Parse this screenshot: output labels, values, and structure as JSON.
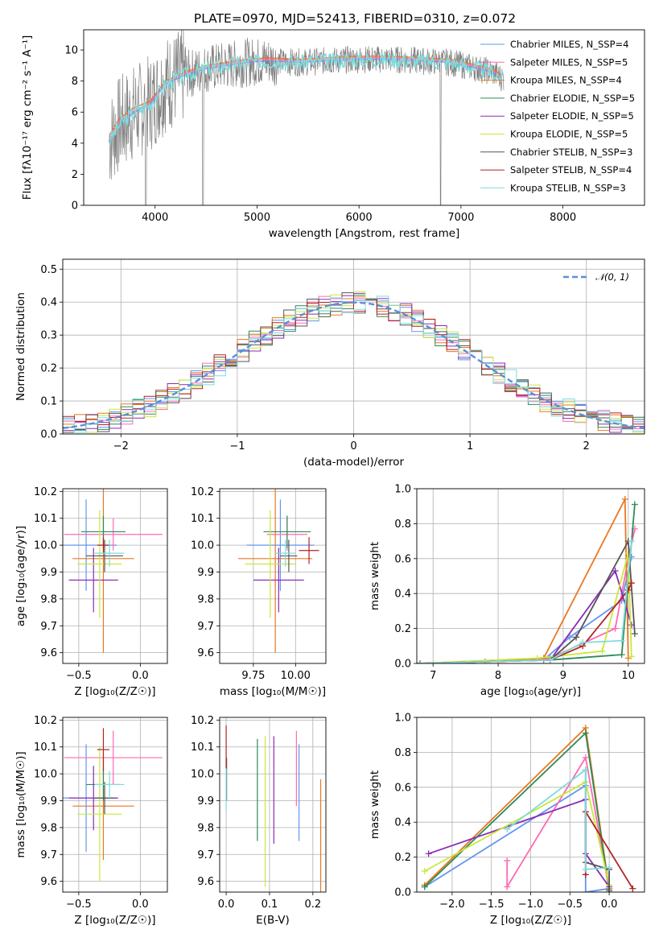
{
  "title": "PLATE=0970, MJD=52413, FIBERID=0310, z=0.072",
  "colors": {
    "chabrier_miles": "#6495ed",
    "salpeter_miles": "#ff69b4",
    "kroupa_miles": "#e87722",
    "chabrier_elodie": "#2e8b57",
    "salpeter_elodie": "#8b2bb5",
    "kroupa_elodie": "#c9e83a",
    "chabrier_stelib": "#555555",
    "salpeter_stelib": "#b22222",
    "kroupa_stelib": "#7fdcdc",
    "spectrum_data": "#808080",
    "gauss": "#5b8fd6"
  },
  "chart_data": [
    {
      "id": "spectrum",
      "type": "line",
      "title": "PLATE=0970, MJD=52413, FIBERID=0310, z=0.072",
      "xlabel": "wavelength [Angstrom, rest frame]",
      "ylabel": "Flux [fλ10⁻¹⁷ erg cm⁻² s⁻¹ A⁻¹]",
      "xlim": [
        3300,
        8800
      ],
      "ylim": [
        0,
        11.3
      ],
      "xticks": [
        "4000",
        "5000",
        "6000",
        "7000",
        "8000"
      ],
      "yticks": [
        "0",
        "2",
        "4",
        "6",
        "8",
        "10"
      ],
      "legend_position": "right",
      "series": [
        {
          "name": "Chabrier MILES, N_SSP=4",
          "key": "chabrier_miles",
          "x": [
            3550,
            3650,
            3800,
            3950,
            4100,
            4300,
            4500,
            4700,
            4900,
            5100,
            5400,
            5700,
            6000,
            6300,
            6600,
            6900,
            7100,
            7300,
            7400
          ],
          "y": [
            4.1,
            5.2,
            6.0,
            6.5,
            7.8,
            8.4,
            8.8,
            9.0,
            9.2,
            9.3,
            9.2,
            9.3,
            9.4,
            9.4,
            9.3,
            9.2,
            8.9,
            8.6,
            8.2
          ]
        },
        {
          "name": "Salpeter MILES, N_SSP=5",
          "key": "salpeter_miles",
          "x": [
            3550,
            3650,
            3800,
            3950,
            4100,
            4300,
            4500,
            4700,
            4900,
            5100,
            5400,
            5700,
            6000,
            6300,
            6600,
            6900,
            7100,
            7300,
            7400
          ],
          "y": [
            4.3,
            5.4,
            6.1,
            6.6,
            7.9,
            8.5,
            8.9,
            9.1,
            9.3,
            9.4,
            9.3,
            9.4,
            9.5,
            9.5,
            9.4,
            9.3,
            9.0,
            8.7,
            8.3
          ]
        },
        {
          "name": "Kroupa MILES, N_SSP=4",
          "key": "kroupa_miles",
          "x": [
            3550,
            3650,
            3800,
            3950,
            4100,
            4300,
            4500,
            4700,
            4900,
            5100,
            5400,
            5700,
            6000,
            6300,
            6600,
            6900,
            7100,
            7300,
            7400
          ],
          "y": [
            4.5,
            5.6,
            6.3,
            6.7,
            8.0,
            8.6,
            9.0,
            9.2,
            9.4,
            9.5,
            9.4,
            9.5,
            9.6,
            9.6,
            9.5,
            9.4,
            9.1,
            8.8,
            8.4
          ]
        }
      ]
    },
    {
      "id": "residuals",
      "type": "line",
      "xlabel": "(data-model)/error",
      "ylabel": "Normed distribution",
      "xlim": [
        -2.5,
        2.5
      ],
      "ylim": [
        0,
        0.53
      ],
      "xticks": [
        "−2",
        "−1",
        "0",
        "1",
        "2"
      ],
      "yticks": [
        "0.0",
        "0.1",
        "0.2",
        "0.3",
        "0.4",
        "0.5"
      ],
      "legend_position": "top-right",
      "series": [
        {
          "name": "𝒩(0, 1)",
          "key": "gauss",
          "x": [
            -2.5,
            -2.0,
            -1.5,
            -1.0,
            -0.5,
            0.0,
            0.5,
            1.0,
            1.5,
            2.0,
            2.5
          ],
          "y": [
            0.018,
            0.054,
            0.13,
            0.242,
            0.352,
            0.399,
            0.352,
            0.242,
            0.13,
            0.054,
            0.018
          ]
        }
      ]
    },
    {
      "id": "age_vs_Z",
      "type": "scatter",
      "xlabel": "Z [log₁₀(Z/Z☉)]",
      "ylabel": "age  [log₁₀(age/yr)]",
      "xlim": [
        -0.63,
        0.22
      ],
      "ylim": [
        9.56,
        10.21
      ],
      "xticks": [
        "−0.5",
        "0.0"
      ],
      "yticks": [
        "9.6",
        "9.7",
        "9.8",
        "9.9",
        "10.0",
        "10.1",
        "10.2"
      ],
      "points": [
        {
          "key": "chabrier_miles",
          "x": -0.44,
          "y": 10.0,
          "xerr": 0.25,
          "yerr": 0.17
        },
        {
          "key": "salpeter_miles",
          "x": -0.22,
          "y": 10.04,
          "xerr": 0.4,
          "yerr": 0.06
        },
        {
          "key": "kroupa_miles",
          "x": -0.3,
          "y": 9.95,
          "xerr": 0.25,
          "yerr": 0.35
        },
        {
          "key": "chabrier_elodie",
          "x": -0.3,
          "y": 10.05,
          "xerr": 0.18,
          "yerr": 0.06
        },
        {
          "key": "salpeter_elodie",
          "x": -0.38,
          "y": 9.87,
          "xerr": 0.2,
          "yerr": 0.12
        },
        {
          "key": "kroupa_elodie",
          "x": -0.33,
          "y": 9.93,
          "xerr": 0.18,
          "yerr": 0.2
        },
        {
          "key": "chabrier_stelib",
          "x": -0.29,
          "y": 9.96,
          "xerr": 0.15,
          "yerr": 0.06
        },
        {
          "key": "salpeter_stelib",
          "x": -0.3,
          "y": 10.0,
          "xerr": 0.05,
          "yerr": 0.03
        },
        {
          "key": "kroupa_stelib",
          "x": -0.25,
          "y": 9.97,
          "xerr": 0.12,
          "yerr": 0.05
        }
      ]
    },
    {
      "id": "age_vs_mass",
      "type": "scatter",
      "xlabel": "mass [log₁₀(M/M☉)]",
      "ylabel": "",
      "xlim": [
        9.55,
        10.18
      ],
      "ylim": [
        9.56,
        10.21
      ],
      "xticks": [
        "9.75",
        "10.00"
      ],
      "yticks": [
        "9.6",
        "9.7",
        "9.8",
        "9.9",
        "10.0",
        "10.1",
        "10.2"
      ],
      "points": [
        {
          "key": "chabrier_miles",
          "x": 9.91,
          "y": 10.0,
          "xerr": 0.2,
          "yerr": 0.17
        },
        {
          "key": "salpeter_miles",
          "x": 9.95,
          "y": 10.04,
          "xerr": 0.12,
          "yerr": 0.06
        },
        {
          "key": "kroupa_miles",
          "x": 9.88,
          "y": 9.95,
          "xerr": 0.22,
          "yerr": 0.35
        },
        {
          "key": "chabrier_elodie",
          "x": 9.95,
          "y": 10.05,
          "xerr": 0.14,
          "yerr": 0.06
        },
        {
          "key": "salpeter_elodie",
          "x": 9.9,
          "y": 9.87,
          "xerr": 0.15,
          "yerr": 0.12
        },
        {
          "key": "kroupa_elodie",
          "x": 9.85,
          "y": 9.93,
          "xerr": 0.15,
          "yerr": 0.2
        },
        {
          "key": "chabrier_stelib",
          "x": 9.96,
          "y": 9.96,
          "xerr": 0.05,
          "yerr": 0.06
        },
        {
          "key": "salpeter_stelib",
          "x": 10.08,
          "y": 9.98,
          "xerr": 0.06,
          "yerr": 0.05
        },
        {
          "key": "kroupa_stelib",
          "x": 9.94,
          "y": 9.97,
          "xerr": 0.06,
          "yerr": 0.05
        }
      ]
    },
    {
      "id": "weight_vs_age",
      "type": "line",
      "xlabel": "age  [log₁₀(age/yr)]",
      "ylabel": "mass weight",
      "xlim": [
        6.75,
        10.25
      ],
      "ylim": [
        0,
        1.0
      ],
      "xticks": [
        "7",
        "8",
        "9",
        "10"
      ],
      "yticks": [
        "0.0",
        "0.2",
        "0.4",
        "0.6",
        "0.8",
        "1.0"
      ],
      "series": [
        {
          "key": "chabrier_miles",
          "x": [
            6.8,
            8.7,
            9.1,
            9.9,
            10.05
          ],
          "y": [
            0.0,
            0.02,
            0.15,
            0.36,
            0.61
          ]
        },
        {
          "key": "salpeter_miles",
          "x": [
            7.8,
            8.8,
            9.8,
            10.0,
            10.1
          ],
          "y": [
            0.01,
            0.03,
            0.2,
            0.6,
            0.77
          ]
        },
        {
          "key": "kroupa_miles",
          "x": [
            6.8,
            8.7,
            9.95,
            10.0
          ],
          "y": [
            0.0,
            0.03,
            0.94,
            0.03
          ]
        },
        {
          "key": "chabrier_elodie",
          "x": [
            6.8,
            8.8,
            9.9,
            10.1
          ],
          "y": [
            0.0,
            0.02,
            0.05,
            0.91
          ]
        },
        {
          "key": "salpeter_elodie",
          "x": [
            6.8,
            8.8,
            9.8,
            10.05
          ],
          "y": [
            0.0,
            0.02,
            0.53,
            0.22
          ]
        },
        {
          "key": "kroupa_elodie",
          "x": [
            6.8,
            8.6,
            9.6,
            10.0,
            10.05
          ],
          "y": [
            0.0,
            0.03,
            0.07,
            0.63,
            0.04
          ]
        },
        {
          "key": "chabrier_stelib",
          "x": [
            6.8,
            8.8,
            9.2,
            10.0,
            10.1
          ],
          "y": [
            0.0,
            0.02,
            0.15,
            0.7,
            0.17
          ]
        },
        {
          "key": "salpeter_stelib",
          "x": [
            6.8,
            8.8,
            9.3,
            10.0,
            10.05
          ],
          "y": [
            0.0,
            0.02,
            0.1,
            0.42,
            0.46
          ]
        },
        {
          "key": "kroupa_stelib",
          "x": [
            6.8,
            8.8,
            9.3,
            9.9,
            10.05
          ],
          "y": [
            0.0,
            0.02,
            0.12,
            0.13,
            0.7
          ]
        }
      ]
    },
    {
      "id": "mass_vs_Z",
      "type": "scatter",
      "xlabel": "Z [log₁₀(Z/Z☉)]",
      "ylabel": "mass [log₁₀(M/M☉)]",
      "xlim": [
        -0.63,
        0.22
      ],
      "ylim": [
        9.56,
        10.21
      ],
      "xticks": [
        "−0.5",
        "0.0"
      ],
      "yticks": [
        "9.6",
        "9.7",
        "9.8",
        "9.9",
        "10.0",
        "10.1",
        "10.2"
      ],
      "points": [
        {
          "key": "chabrier_miles",
          "x": -0.44,
          "y": 9.91,
          "xerr": 0.25,
          "yerr": 0.2
        },
        {
          "key": "salpeter_miles",
          "x": -0.22,
          "y": 10.06,
          "xerr": 0.4,
          "yerr": 0.1
        },
        {
          "key": "kroupa_miles",
          "x": -0.3,
          "y": 9.88,
          "xerr": 0.25,
          "yerr": 0.2
        },
        {
          "key": "chabrier_elodie",
          "x": -0.3,
          "y": 9.96,
          "xerr": 0.14,
          "yerr": 0.06
        },
        {
          "key": "salpeter_elodie",
          "x": -0.38,
          "y": 9.91,
          "xerr": 0.2,
          "yerr": 0.12
        },
        {
          "key": "kroupa_elodie",
          "x": -0.33,
          "y": 9.85,
          "xerr": 0.18,
          "yerr": 0.25
        },
        {
          "key": "chabrier_stelib",
          "x": -0.29,
          "y": 9.91,
          "xerr": 0.08,
          "yerr": 0.06
        },
        {
          "key": "salpeter_stelib",
          "x": -0.3,
          "y": 10.09,
          "xerr": 0.05,
          "yerr": 0.08
        },
        {
          "key": "kroupa_stelib",
          "x": -0.25,
          "y": 9.96,
          "xerr": 0.12,
          "yerr": 0.05
        }
      ]
    },
    {
      "id": "mass_vs_ebv",
      "type": "scatter",
      "xlabel": "E(B-V)",
      "ylabel": "",
      "xlim": [
        -0.015,
        0.23
      ],
      "ylim": [
        9.56,
        10.21
      ],
      "xticks": [
        "0.0",
        "0.1",
        "0.2"
      ],
      "yticks": [
        "9.6",
        "9.7",
        "9.8",
        "9.9",
        "10.0",
        "10.1",
        "10.2"
      ],
      "points": [
        {
          "key": "chabrier_miles",
          "x": 0.168,
          "y": 9.93,
          "xerr": 0.0,
          "yerr": 0.18
        },
        {
          "key": "salpeter_miles",
          "x": 0.162,
          "y": 10.02,
          "xerr": 0.0,
          "yerr": 0.14
        },
        {
          "key": "kroupa_miles",
          "x": 0.218,
          "y": 9.77,
          "xerr": 0.0,
          "yerr": 0.21
        },
        {
          "key": "chabrier_elodie",
          "x": 0.072,
          "y": 9.94,
          "xerr": 0.0,
          "yerr": 0.19
        },
        {
          "key": "salpeter_elodie",
          "x": 0.11,
          "y": 9.94,
          "xerr": 0.0,
          "yerr": 0.2
        },
        {
          "key": "kroupa_elodie",
          "x": 0.09,
          "y": 9.86,
          "xerr": 0.0,
          "yerr": 0.28
        },
        {
          "key": "chabrier_stelib",
          "x": 0.001,
          "y": 9.98,
          "xerr": 0.0,
          "yerr": 0.08
        },
        {
          "key": "salpeter_stelib",
          "x": 0.0,
          "y": 10.1,
          "xerr": 0.0,
          "yerr": 0.08
        },
        {
          "key": "kroupa_stelib",
          "x": 0.0,
          "y": 9.94,
          "xerr": 0.0,
          "yerr": 0.08
        }
      ]
    },
    {
      "id": "weight_vs_Z",
      "type": "line",
      "xlabel": "Z [log₁₀(Z/Z☉)]",
      "ylabel": "mass weight",
      "xlim": [
        -2.45,
        0.45
      ],
      "ylim": [
        0,
        1.0
      ],
      "xticks": [
        "−2.0",
        "−1.5",
        "−1.0",
        "−0.5",
        "0.0"
      ],
      "yticks": [
        "0.0",
        "0.2",
        "0.4",
        "0.6",
        "0.8",
        "1.0"
      ],
      "series": [
        {
          "key": "chabrier_miles",
          "x": [
            -2.35,
            -0.3,
            -0.3,
            0.0
          ],
          "y": [
            0.03,
            0.61,
            0.0,
            0.02
          ]
        },
        {
          "key": "salpeter_miles",
          "x": [
            -1.3,
            -1.3,
            -0.3,
            0.0
          ],
          "y": [
            0.18,
            0.03,
            0.77,
            0.01
          ]
        },
        {
          "key": "kroupa_miles",
          "x": [
            -2.35,
            -0.3,
            0.0
          ],
          "y": [
            0.04,
            0.94,
            0.02
          ]
        },
        {
          "key": "chabrier_elodie",
          "x": [
            -2.35,
            -0.3,
            0.0
          ],
          "y": [
            0.03,
            0.91,
            0.01
          ]
        },
        {
          "key": "salpeter_elodie",
          "x": [
            -2.3,
            -0.3,
            -0.3,
            0.0
          ],
          "y": [
            0.22,
            0.53,
            0.22,
            0.03
          ]
        },
        {
          "key": "kroupa_elodie",
          "x": [
            -2.35,
            -0.3,
            0.0
          ],
          "y": [
            0.12,
            0.63,
            0.04
          ]
        },
        {
          "key": "chabrier_stelib",
          "x": [
            -0.3,
            -0.3,
            0.0,
            0.0
          ],
          "y": [
            0.7,
            0.17,
            0.13,
            0.0
          ]
        },
        {
          "key": "salpeter_stelib",
          "x": [
            -0.3,
            -0.3,
            0.3
          ],
          "y": [
            0.1,
            0.46,
            0.02
          ]
        },
        {
          "key": "kroupa_stelib",
          "x": [
            -1.3,
            -0.3,
            -0.3,
            0.0
          ],
          "y": [
            0.36,
            0.7,
            0.13,
            0.14
          ]
        }
      ]
    }
  ],
  "legend": [
    {
      "key": "chabrier_miles",
      "label": "Chabrier MILES, N_SSP=4"
    },
    {
      "key": "salpeter_miles",
      "label": "Salpeter MILES, N_SSP=5"
    },
    {
      "key": "kroupa_miles",
      "label": "Kroupa MILES, N_SSP=4"
    },
    {
      "key": "chabrier_elodie",
      "label": "Chabrier ELODIE, N_SSP=5"
    },
    {
      "key": "salpeter_elodie",
      "label": "Salpeter ELODIE, N_SSP=5"
    },
    {
      "key": "kroupa_elodie",
      "label": "Kroupa ELODIE, N_SSP=5"
    },
    {
      "key": "chabrier_stelib",
      "label": "Chabrier STELIB, N_SSP=3"
    },
    {
      "key": "salpeter_stelib",
      "label": "Salpeter STELIB, N_SSP=4"
    },
    {
      "key": "kroupa_stelib",
      "label": "Kroupa STELIB, N_SSP=3"
    }
  ]
}
